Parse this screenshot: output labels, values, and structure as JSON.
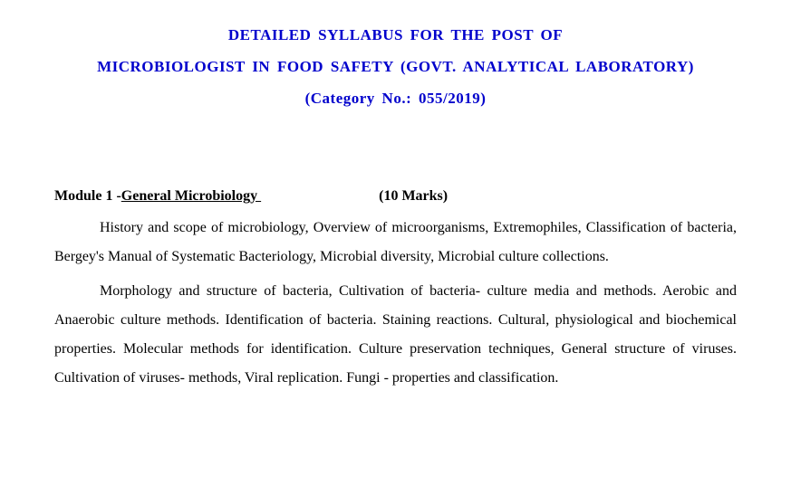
{
  "colors": {
    "title_color": "#0000cc",
    "body_color": "#000000",
    "background": "#ffffff"
  },
  "typography": {
    "font_family": "Times New Roman",
    "title_fontsize": 17,
    "body_fontsize": 16,
    "title_weight": "bold"
  },
  "title": {
    "line1": "DETAILED SYLLABUS FOR THE POST OF",
    "line2": "MICROBIOLOGIST IN FOOD SAFETY (GOVT. ANALYTICAL LABORATORY)",
    "line3": "(Category No.: 055/2019)"
  },
  "module": {
    "label": "Module 1 -",
    "name": "General Microbiology ",
    "marks": "(10 Marks)"
  },
  "paragraphs": {
    "p1": "History and scope of microbiology, Overview of microorganisms, Extremophiles, Classification of bacteria, Bergey's Manual of Systematic Bacteriology, Microbial diversity, Microbial culture collections.",
    "p2": "Morphology and structure of bacteria, Cultivation of bacteria- culture media and methods. Aerobic and Anaerobic culture methods. Identification of bacteria. Staining reactions. Cultural, physiological and biochemical properties. Molecular methods for identification. Culture preservation techniques, General structure of viruses. Cultivation of viruses- methods, Viral replication. Fungi - properties and classification."
  }
}
